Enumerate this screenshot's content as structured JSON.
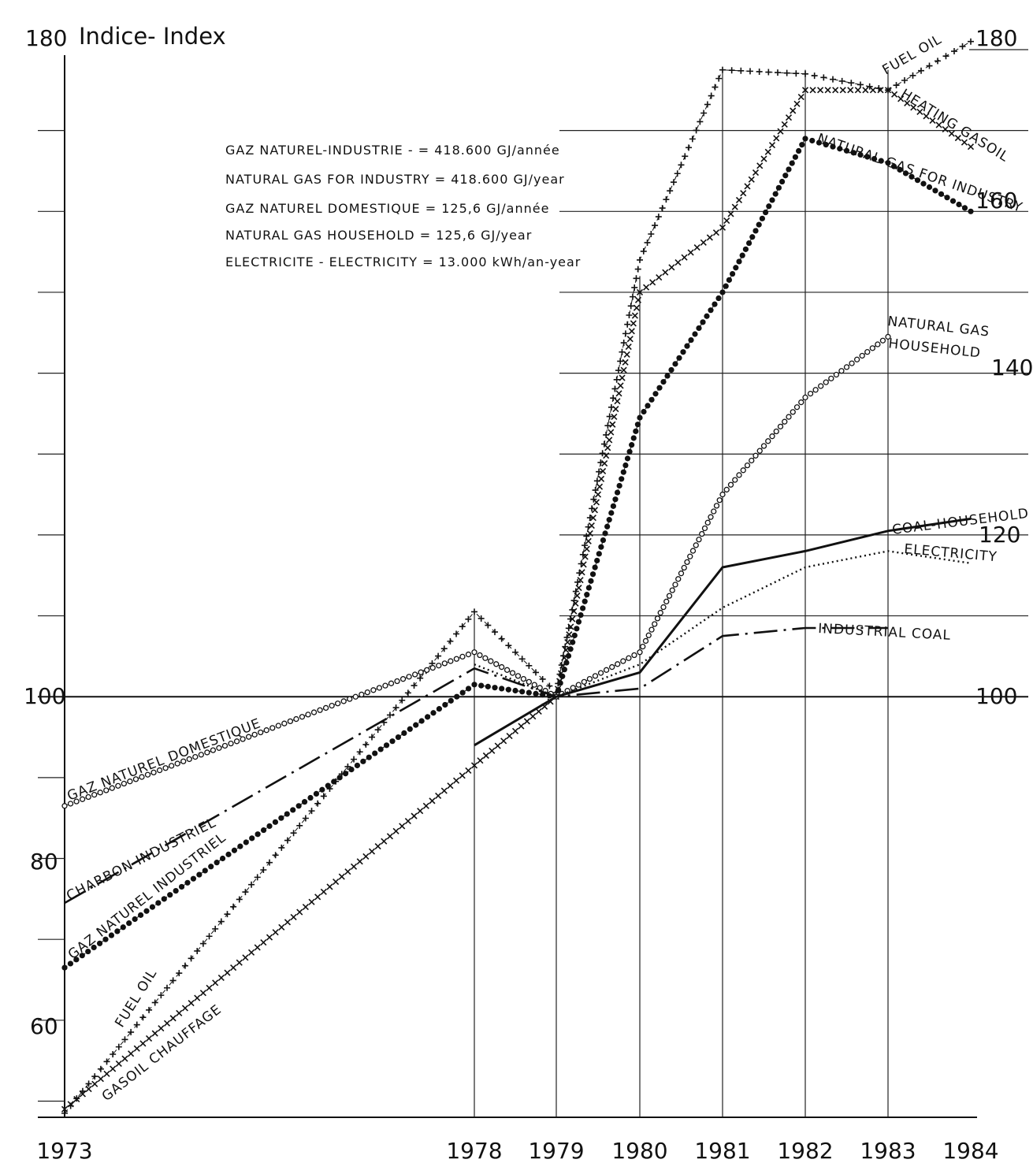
{
  "chart_data": {
    "type": "line",
    "y_label": "Indice- Index",
    "y_ticks_left": [
      "180",
      "100",
      "80",
      "60"
    ],
    "y_ticks_right": [
      "180",
      "160",
      "140",
      "120",
      "100"
    ],
    "ylim": [
      48,
      180
    ],
    "x": [
      1973,
      1978,
      1979,
      1980,
      1981,
      1982,
      1983,
      1984
    ],
    "x_tick_labels": [
      "1973",
      "1978",
      "1979",
      "1980",
      "1981",
      "1982",
      "1983",
      "1984"
    ],
    "grid": true,
    "legend": [
      "GAZ NATUREL-INDUSTRIE - = 418.600 GJ/année",
      "NATURAL GAS FOR INDUSTRY = 418.600 GJ/year",
      "GAZ NATUREL DOMESTIQUE = 125,6 GJ/année",
      "NATURAL GAS HOUSEHOLD = 125,6 GJ/year",
      "ELECTRICITE - ELECTRICITY = 13.000 kWh/an-year"
    ],
    "series": [
      {
        "key": "fuel_oil",
        "style": "plus",
        "labels": [
          "FUEL OIL",
          "FUEL OIL"
        ],
        "values": [
          48.5,
          110.5,
          100.5,
          154,
          177.5,
          177,
          175,
          181
        ]
      },
      {
        "key": "gasoil",
        "style": "cross",
        "labels": [
          "GASOIL CHAUFFAGE",
          "HEATING GASOIL"
        ],
        "values": [
          49,
          91.5,
          100,
          150,
          158,
          175,
          175,
          168
        ]
      },
      {
        "key": "gas_industry",
        "style": "dots",
        "labels": [
          "GAZ NATUREL INDUSTRIEL",
          "NATURAL GAS FOR INDUSTRY"
        ],
        "values": [
          66.5,
          101.5,
          100,
          134.5,
          150,
          169,
          166,
          160
        ]
      },
      {
        "key": "gas_household",
        "style": "circles",
        "labels": [
          "GAZ NATUREL DOMESTIQUE",
          "NATURAL GAS HOUSEHOLD"
        ],
        "values": [
          86.5,
          105.5,
          100,
          105.5,
          125,
          137,
          144.5,
          null
        ]
      },
      {
        "key": "charbon_industriel",
        "style": "dashdot",
        "labels": [
          "CHARBON INDUSTRIEL",
          "INDUSTRIAL COAL"
        ],
        "values": [
          74.5,
          103.5,
          100,
          101,
          107.5,
          108.5,
          108.5,
          null
        ]
      },
      {
        "key": "coal_household",
        "style": "solid",
        "labels": [
          "COAL-HOUSEHOLD"
        ],
        "values": [
          null,
          94,
          100,
          103,
          116,
          118,
          120.5,
          122
        ]
      },
      {
        "key": "electricity",
        "style": "fine",
        "labels": [
          "ELECTRICITY"
        ],
        "values": [
          null,
          104,
          100,
          104,
          111,
          116,
          118,
          116.5
        ]
      }
    ]
  }
}
